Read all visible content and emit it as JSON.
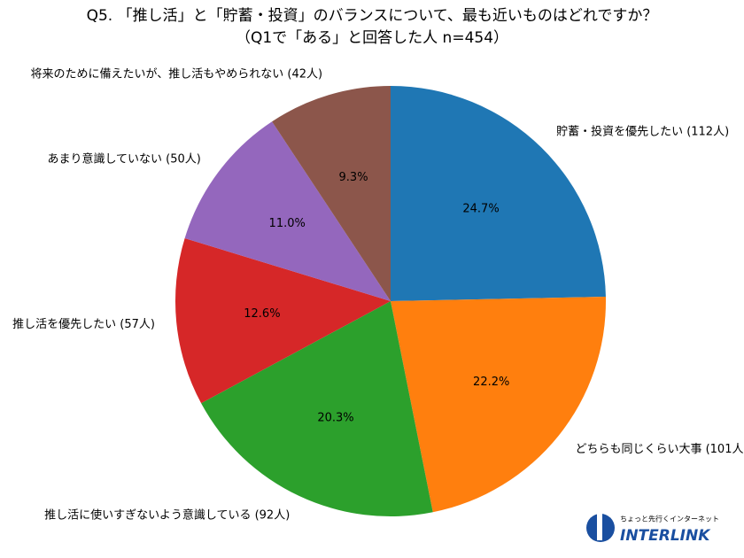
{
  "chart_data": {
    "type": "pie",
    "title": "Q5. 「推し活」と「貯蓄・投資」のバランスについて、最も近いものはどれですか？",
    "subtitle": "（Q1で「ある」と回答した人 n=454）",
    "categories": [
      "貯蓄・投資を優先したい (112人)",
      "どちらも同じくらい大事 (101人)",
      "推し活に使いすぎないよう意識している (92人)",
      "推し活を優先したい (57人)",
      "あまり意識していない (50人)",
      "将来のために備えたいが、推し活もやめられない (42人)"
    ],
    "values": [
      24.7,
      22.2,
      20.3,
      12.6,
      11.0,
      9.3
    ],
    "value_labels": [
      "24.7%",
      "22.2%",
      "20.3%",
      "12.6%",
      "11.0%",
      "9.3%"
    ],
    "colors": [
      "#1f77b4",
      "#ff7f0e",
      "#2ca02c",
      "#d62728",
      "#9467bd",
      "#8c564b"
    ],
    "logo": {
      "tagline": "ちょっと先行くインターネット",
      "name": "INTERLINK"
    }
  }
}
